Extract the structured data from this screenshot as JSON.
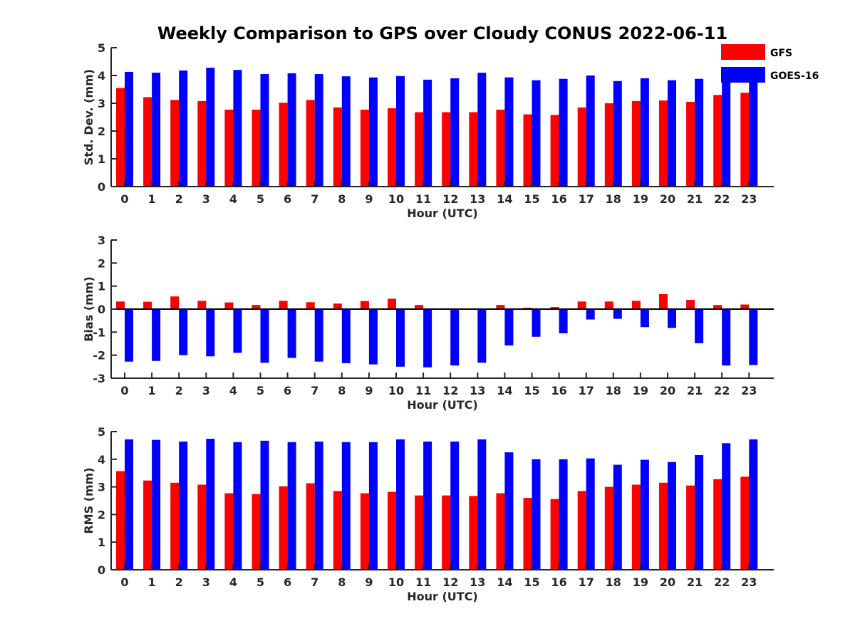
{
  "title": "Weekly Comparison to GPS over Cloudy CONUS 2022-06-11",
  "colors": {
    "GFS": "#ff0000",
    "GOES-16": "#0000ff"
  },
  "legend": {
    "items": [
      "GFS",
      "GOES-16"
    ],
    "placement": "top-right"
  },
  "chart_data": [
    {
      "type": "bar",
      "categories": [
        "0",
        "1",
        "2",
        "3",
        "4",
        "5",
        "6",
        "7",
        "8",
        "9",
        "10",
        "11",
        "12",
        "13",
        "14",
        "15",
        "16",
        "17",
        "18",
        "19",
        "20",
        "21",
        "22",
        "23"
      ],
      "xlabel": "Hour (UTC)",
      "ylabel": "Std. Dev. (mm)",
      "ylim": [
        0,
        5
      ],
      "yticks": [
        0,
        1,
        2,
        3,
        4,
        5
      ],
      "grid": false,
      "series": [
        {
          "name": "GFS",
          "values": [
            3.55,
            3.22,
            3.12,
            3.08,
            2.77,
            2.77,
            3.02,
            3.12,
            2.85,
            2.77,
            2.82,
            2.68,
            2.68,
            2.68,
            2.77,
            2.6,
            2.58,
            2.85,
            3.0,
            3.08,
            3.1,
            3.05,
            3.3,
            3.38
          ]
        },
        {
          "name": "GOES-16",
          "values": [
            4.13,
            4.1,
            4.18,
            4.28,
            4.2,
            4.05,
            4.08,
            4.05,
            3.97,
            3.93,
            3.98,
            3.85,
            3.9,
            4.1,
            3.93,
            3.83,
            3.88,
            4.0,
            3.8,
            3.9,
            3.83,
            3.88,
            3.85,
            3.8
          ]
        }
      ]
    },
    {
      "type": "bar",
      "categories": [
        "0",
        "1",
        "2",
        "3",
        "4",
        "5",
        "6",
        "7",
        "8",
        "9",
        "10",
        "11",
        "12",
        "13",
        "14",
        "15",
        "16",
        "17",
        "18",
        "19",
        "20",
        "21",
        "22",
        "23"
      ],
      "xlabel": "Hour (UTC)",
      "ylabel": "Bias (mm)",
      "ylim": [
        -3,
        3
      ],
      "yticks": [
        -3,
        -2,
        -1,
        0,
        1,
        2,
        3
      ],
      "grid": false,
      "series": [
        {
          "name": "GFS",
          "values": [
            0.33,
            0.32,
            0.55,
            0.36,
            0.29,
            0.18,
            0.36,
            0.3,
            0.24,
            0.35,
            0.45,
            0.18,
            0.02,
            -0.02,
            0.18,
            0.06,
            0.09,
            0.33,
            0.33,
            0.36,
            0.65,
            0.4,
            0.18,
            0.2
          ]
        },
        {
          "name": "GOES-16",
          "values": [
            -2.28,
            -2.25,
            -2.0,
            -2.05,
            -1.9,
            -2.33,
            -2.12,
            -2.28,
            -2.35,
            -2.4,
            -2.5,
            -2.53,
            -2.45,
            -2.33,
            -1.58,
            -1.2,
            -1.05,
            -0.45,
            -0.42,
            -0.78,
            -0.82,
            -1.48,
            -2.45,
            -2.43
          ]
        }
      ]
    },
    {
      "type": "bar",
      "categories": [
        "0",
        "1",
        "2",
        "3",
        "4",
        "5",
        "6",
        "7",
        "8",
        "9",
        "10",
        "11",
        "12",
        "13",
        "14",
        "15",
        "16",
        "17",
        "18",
        "19",
        "20",
        "21",
        "22",
        "23"
      ],
      "xlabel": "Hour (UTC)",
      "ylabel": "RMS (mm)",
      "ylim": [
        0,
        5
      ],
      "yticks": [
        0,
        1,
        2,
        3,
        4,
        5
      ],
      "grid": false,
      "series": [
        {
          "name": "GFS",
          "values": [
            3.57,
            3.23,
            3.15,
            3.08,
            2.77,
            2.74,
            3.02,
            3.13,
            2.85,
            2.77,
            2.82,
            2.69,
            2.69,
            2.67,
            2.77,
            2.6,
            2.56,
            2.85,
            3.0,
            3.08,
            3.15,
            3.05,
            3.28,
            3.37
          ]
        },
        {
          "name": "GOES-16",
          "values": [
            4.72,
            4.7,
            4.64,
            4.74,
            4.62,
            4.67,
            4.62,
            4.64,
            4.62,
            4.62,
            4.72,
            4.64,
            4.64,
            4.72,
            4.25,
            4.0,
            4.0,
            4.03,
            3.8,
            3.98,
            3.9,
            4.15,
            4.58,
            4.72
          ]
        }
      ]
    }
  ]
}
